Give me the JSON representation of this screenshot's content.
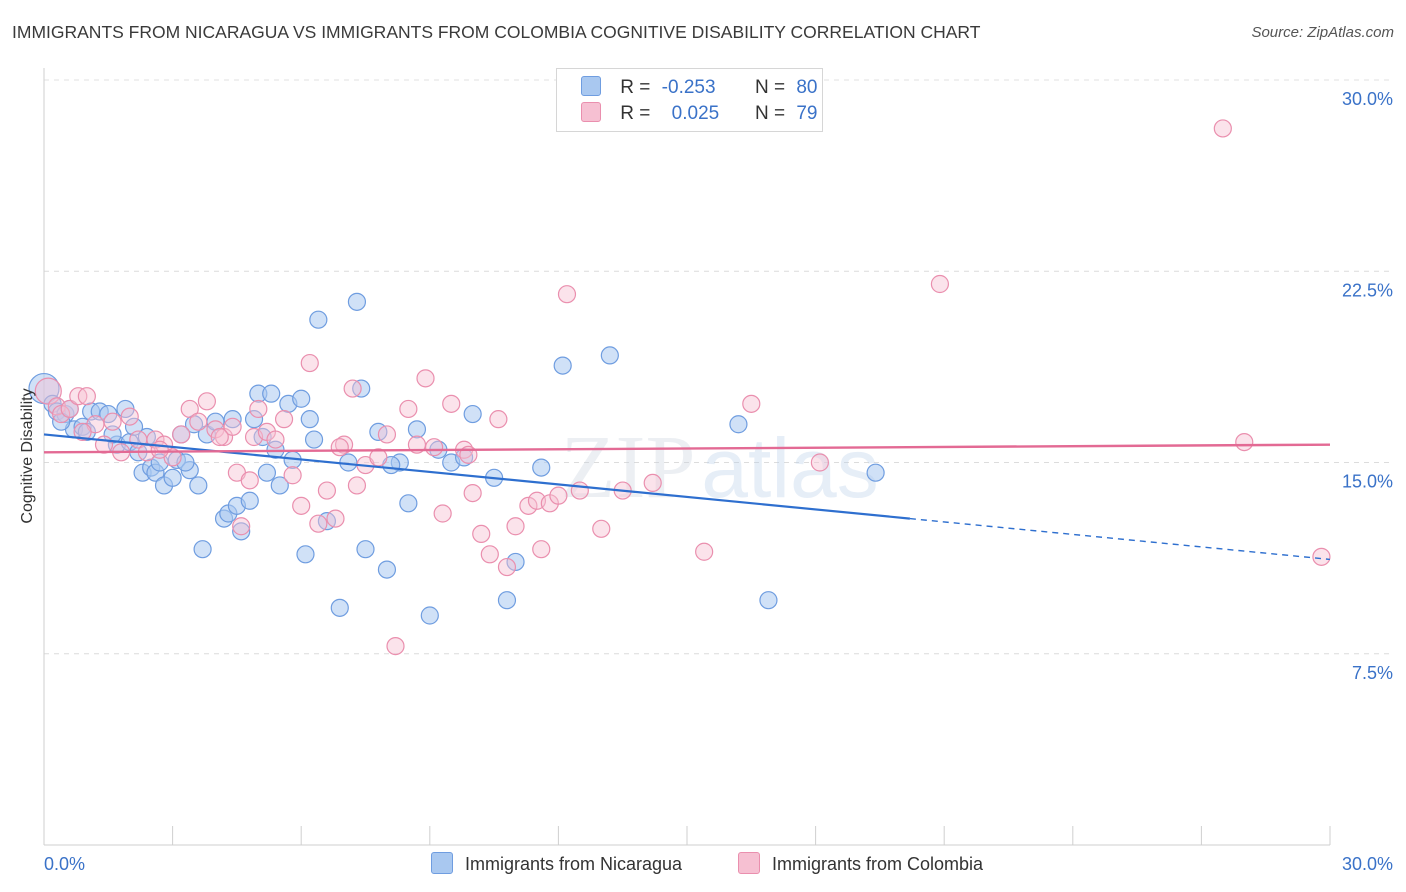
{
  "title": "IMMIGRANTS FROM NICARAGUA VS IMMIGRANTS FROM COLOMBIA COGNITIVE DISABILITY CORRELATION CHART",
  "source": "Source: ZipAtlas.com",
  "watermark": {
    "zip": "ZIP",
    "atlas": "atlas"
  },
  "legend": {
    "nicaragua": {
      "r_label": "R =",
      "r_value": "-0.253",
      "n_label": "N =",
      "n_value": "80"
    },
    "colombia": {
      "r_label": "R =",
      "r_value": "0.025",
      "n_label": "N =",
      "n_value": "79"
    }
  },
  "colors": {
    "nicaragua_fill": "#a9c8f0",
    "nicaragua_stroke": "#6f9de0",
    "nicaragua_line": "#2e6fcf",
    "colombia_fill": "#f6c0d2",
    "colombia_stroke": "#ea8fae",
    "colombia_line": "#e36a94",
    "tick_label": "#3a72c8"
  },
  "chart_data": {
    "type": "scatter",
    "title": "IMMIGRANTS FROM NICARAGUA VS IMMIGRANTS FROM COLOMBIA COGNITIVE DISABILITY CORRELATION CHART",
    "xlabel": "",
    "ylabel": "Cognitive Disability",
    "xlim": [
      0,
      30
    ],
    "ylim": [
      0,
      30
    ],
    "x_tick_labels": [
      "0.0%",
      "30.0%"
    ],
    "y_ticks": [
      7.5,
      15.0,
      22.5,
      30.0
    ],
    "y_tick_labels": [
      "7.5%",
      "15.0%",
      "22.5%",
      "30.0%"
    ],
    "grid": true,
    "legend_position": "top-center",
    "series": [
      {
        "name": "Immigrants from Nicaragua",
        "trend": {
          "x0": 0.0,
          "y0": 16.1,
          "x1": 20.2,
          "y1": 12.8,
          "dashed_to_x": 30.0,
          "dashed_to_y": 11.2
        },
        "points": [
          [
            0.0,
            17.9
          ],
          [
            0.2,
            17.3
          ],
          [
            0.3,
            17.0
          ],
          [
            0.5,
            16.9
          ],
          [
            0.6,
            17.1
          ],
          [
            0.7,
            16.3
          ],
          [
            0.9,
            16.4
          ],
          [
            1.0,
            16.2
          ],
          [
            1.1,
            17.0
          ],
          [
            1.3,
            17.0
          ],
          [
            1.5,
            16.9
          ],
          [
            1.7,
            15.7
          ],
          [
            1.9,
            17.1
          ],
          [
            2.0,
            15.8
          ],
          [
            2.1,
            16.4
          ],
          [
            2.2,
            15.4
          ],
          [
            2.3,
            14.6
          ],
          [
            2.5,
            14.8
          ],
          [
            2.6,
            14.6
          ],
          [
            2.7,
            15.0
          ],
          [
            2.8,
            14.1
          ],
          [
            3.0,
            14.4
          ],
          [
            3.1,
            15.1
          ],
          [
            3.2,
            16.1
          ],
          [
            3.4,
            14.7
          ],
          [
            3.5,
            16.5
          ],
          [
            3.6,
            14.1
          ],
          [
            3.7,
            11.6
          ],
          [
            3.8,
            16.1
          ],
          [
            4.0,
            16.6
          ],
          [
            4.2,
            12.8
          ],
          [
            4.3,
            13.0
          ],
          [
            4.4,
            16.7
          ],
          [
            4.5,
            13.3
          ],
          [
            4.6,
            12.3
          ],
          [
            4.8,
            13.5
          ],
          [
            4.9,
            16.7
          ],
          [
            5.0,
            17.7
          ],
          [
            5.2,
            14.6
          ],
          [
            5.3,
            17.7
          ],
          [
            5.4,
            15.5
          ],
          [
            5.5,
            14.1
          ],
          [
            5.7,
            17.3
          ],
          [
            5.8,
            15.1
          ],
          [
            6.0,
            17.5
          ],
          [
            6.1,
            11.4
          ],
          [
            6.2,
            16.7
          ],
          [
            6.3,
            15.9
          ],
          [
            6.4,
            20.6
          ],
          [
            6.6,
            12.7
          ],
          [
            6.9,
            9.3
          ],
          [
            7.1,
            15.0
          ],
          [
            7.3,
            21.3
          ],
          [
            7.4,
            17.9
          ],
          [
            7.5,
            11.6
          ],
          [
            7.8,
            16.2
          ],
          [
            8.0,
            10.8
          ],
          [
            8.3,
            15.0
          ],
          [
            8.5,
            13.4
          ],
          [
            8.7,
            16.3
          ],
          [
            9.0,
            9.0
          ],
          [
            9.5,
            15.0
          ],
          [
            9.8,
            15.2
          ],
          [
            10.0,
            16.9
          ],
          [
            10.5,
            14.4
          ],
          [
            10.8,
            9.6
          ],
          [
            11.0,
            11.1
          ],
          [
            11.6,
            14.8
          ],
          [
            12.1,
            18.8
          ],
          [
            13.2,
            19.2
          ],
          [
            16.2,
            16.5
          ],
          [
            16.9,
            9.6
          ],
          [
            19.4,
            14.6
          ],
          [
            0.4,
            16.6
          ],
          [
            1.6,
            16.1
          ],
          [
            2.4,
            16.0
          ],
          [
            3.3,
            15.0
          ],
          [
            5.1,
            16.0
          ],
          [
            8.1,
            14.9
          ],
          [
            9.2,
            15.5
          ]
        ]
      },
      {
        "name": "Immigrants from Colombia",
        "trend": {
          "x0": 0.0,
          "y0": 15.4,
          "x1": 30.0,
          "y1": 15.7
        },
        "points": [
          [
            0.1,
            17.8
          ],
          [
            0.3,
            17.2
          ],
          [
            0.4,
            16.9
          ],
          [
            0.6,
            17.1
          ],
          [
            0.8,
            17.6
          ],
          [
            1.0,
            17.6
          ],
          [
            1.2,
            16.5
          ],
          [
            1.4,
            15.7
          ],
          [
            1.6,
            16.6
          ],
          [
            1.8,
            15.4
          ],
          [
            2.0,
            16.8
          ],
          [
            2.2,
            15.9
          ],
          [
            2.4,
            15.4
          ],
          [
            2.6,
            15.9
          ],
          [
            2.8,
            15.7
          ],
          [
            3.0,
            15.2
          ],
          [
            3.2,
            16.1
          ],
          [
            3.4,
            17.1
          ],
          [
            3.6,
            16.6
          ],
          [
            3.8,
            17.4
          ],
          [
            4.0,
            16.3
          ],
          [
            4.2,
            16.0
          ],
          [
            4.4,
            16.4
          ],
          [
            4.5,
            14.6
          ],
          [
            4.6,
            12.5
          ],
          [
            4.8,
            14.3
          ],
          [
            4.9,
            16.0
          ],
          [
            5.0,
            17.1
          ],
          [
            5.2,
            16.2
          ],
          [
            5.4,
            15.9
          ],
          [
            5.6,
            16.7
          ],
          [
            5.8,
            14.5
          ],
          [
            6.0,
            13.3
          ],
          [
            6.2,
            18.9
          ],
          [
            6.4,
            12.6
          ],
          [
            6.6,
            13.9
          ],
          [
            6.8,
            12.8
          ],
          [
            7.0,
            15.7
          ],
          [
            7.2,
            17.9
          ],
          [
            7.3,
            14.1
          ],
          [
            7.5,
            14.9
          ],
          [
            7.8,
            15.2
          ],
          [
            8.0,
            16.1
          ],
          [
            8.2,
            7.8
          ],
          [
            8.5,
            17.1
          ],
          [
            8.7,
            15.7
          ],
          [
            8.9,
            18.3
          ],
          [
            9.1,
            15.6
          ],
          [
            9.3,
            13.0
          ],
          [
            9.5,
            17.3
          ],
          [
            9.8,
            15.5
          ],
          [
            10.0,
            13.8
          ],
          [
            10.2,
            12.2
          ],
          [
            10.4,
            11.4
          ],
          [
            10.6,
            16.7
          ],
          [
            10.8,
            10.9
          ],
          [
            11.0,
            12.5
          ],
          [
            11.3,
            13.3
          ],
          [
            11.5,
            13.5
          ],
          [
            11.6,
            11.6
          ],
          [
            11.8,
            13.4
          ],
          [
            12.0,
            13.7
          ],
          [
            12.2,
            21.6
          ],
          [
            12.5,
            13.9
          ],
          [
            13.0,
            12.4
          ],
          [
            13.5,
            13.9
          ],
          [
            14.2,
            14.2
          ],
          [
            15.4,
            11.5
          ],
          [
            16.5,
            17.3
          ],
          [
            18.1,
            15.0
          ],
          [
            20.9,
            22.0
          ],
          [
            27.5,
            28.1
          ],
          [
            28.0,
            15.8
          ],
          [
            29.8,
            11.3
          ],
          [
            0.9,
            16.2
          ],
          [
            2.7,
            15.5
          ],
          [
            4.1,
            16.0
          ],
          [
            6.9,
            15.6
          ],
          [
            9.9,
            15.3
          ]
        ]
      }
    ]
  },
  "bottom_legend": [
    "Immigrants from Nicaragua",
    "Immigrants from Colombia"
  ]
}
